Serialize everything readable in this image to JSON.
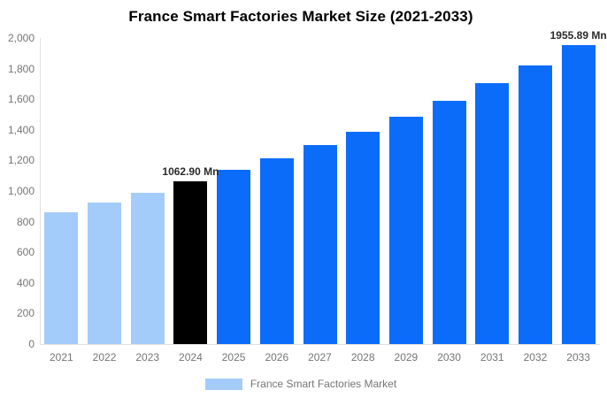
{
  "title": "France Smart Factories Market Size (2021-2033)",
  "legend": {
    "label": "France Smart Factories Market",
    "color_key": "past"
  },
  "colors": {
    "past": "#a3ccfa",
    "current": "#000000",
    "forecast": "#0b6cfa",
    "axis_line": "#e0e0e0",
    "tick_text": "#757575",
    "annotation_text": "#2b2b2b",
    "title_text": "#000000"
  },
  "chart_data": {
    "type": "bar",
    "title": "France Smart Factories Market Size (2021-2033)",
    "unit": "Mn",
    "categories": [
      "2021",
      "2022",
      "2023",
      "2024",
      "2025",
      "2026",
      "2027",
      "2028",
      "2029",
      "2030",
      "2031",
      "2032",
      "2033"
    ],
    "values": [
      862,
      922,
      990,
      1062.9,
      1137,
      1215,
      1300,
      1390,
      1487,
      1590,
      1705,
      1822,
      1955.89
    ],
    "bar_color_keys": [
      "past",
      "past",
      "past",
      "current",
      "forecast",
      "forecast",
      "forecast",
      "forecast",
      "forecast",
      "forecast",
      "forecast",
      "forecast",
      "forecast"
    ],
    "labeled_values": [
      {
        "category": "2024",
        "text": "1062.90 Mn"
      },
      {
        "category": "2033",
        "text": "1955.89 Mn"
      }
    ],
    "ylim": [
      0,
      2000
    ],
    "yticks": [
      "0",
      "200",
      "400",
      "600",
      "800",
      "1,000",
      "1,200",
      "1,400",
      "1,600",
      "1,800",
      "2,000"
    ],
    "grid": false,
    "legend_position": "bottom",
    "xlabel": "",
    "ylabel": ""
  }
}
